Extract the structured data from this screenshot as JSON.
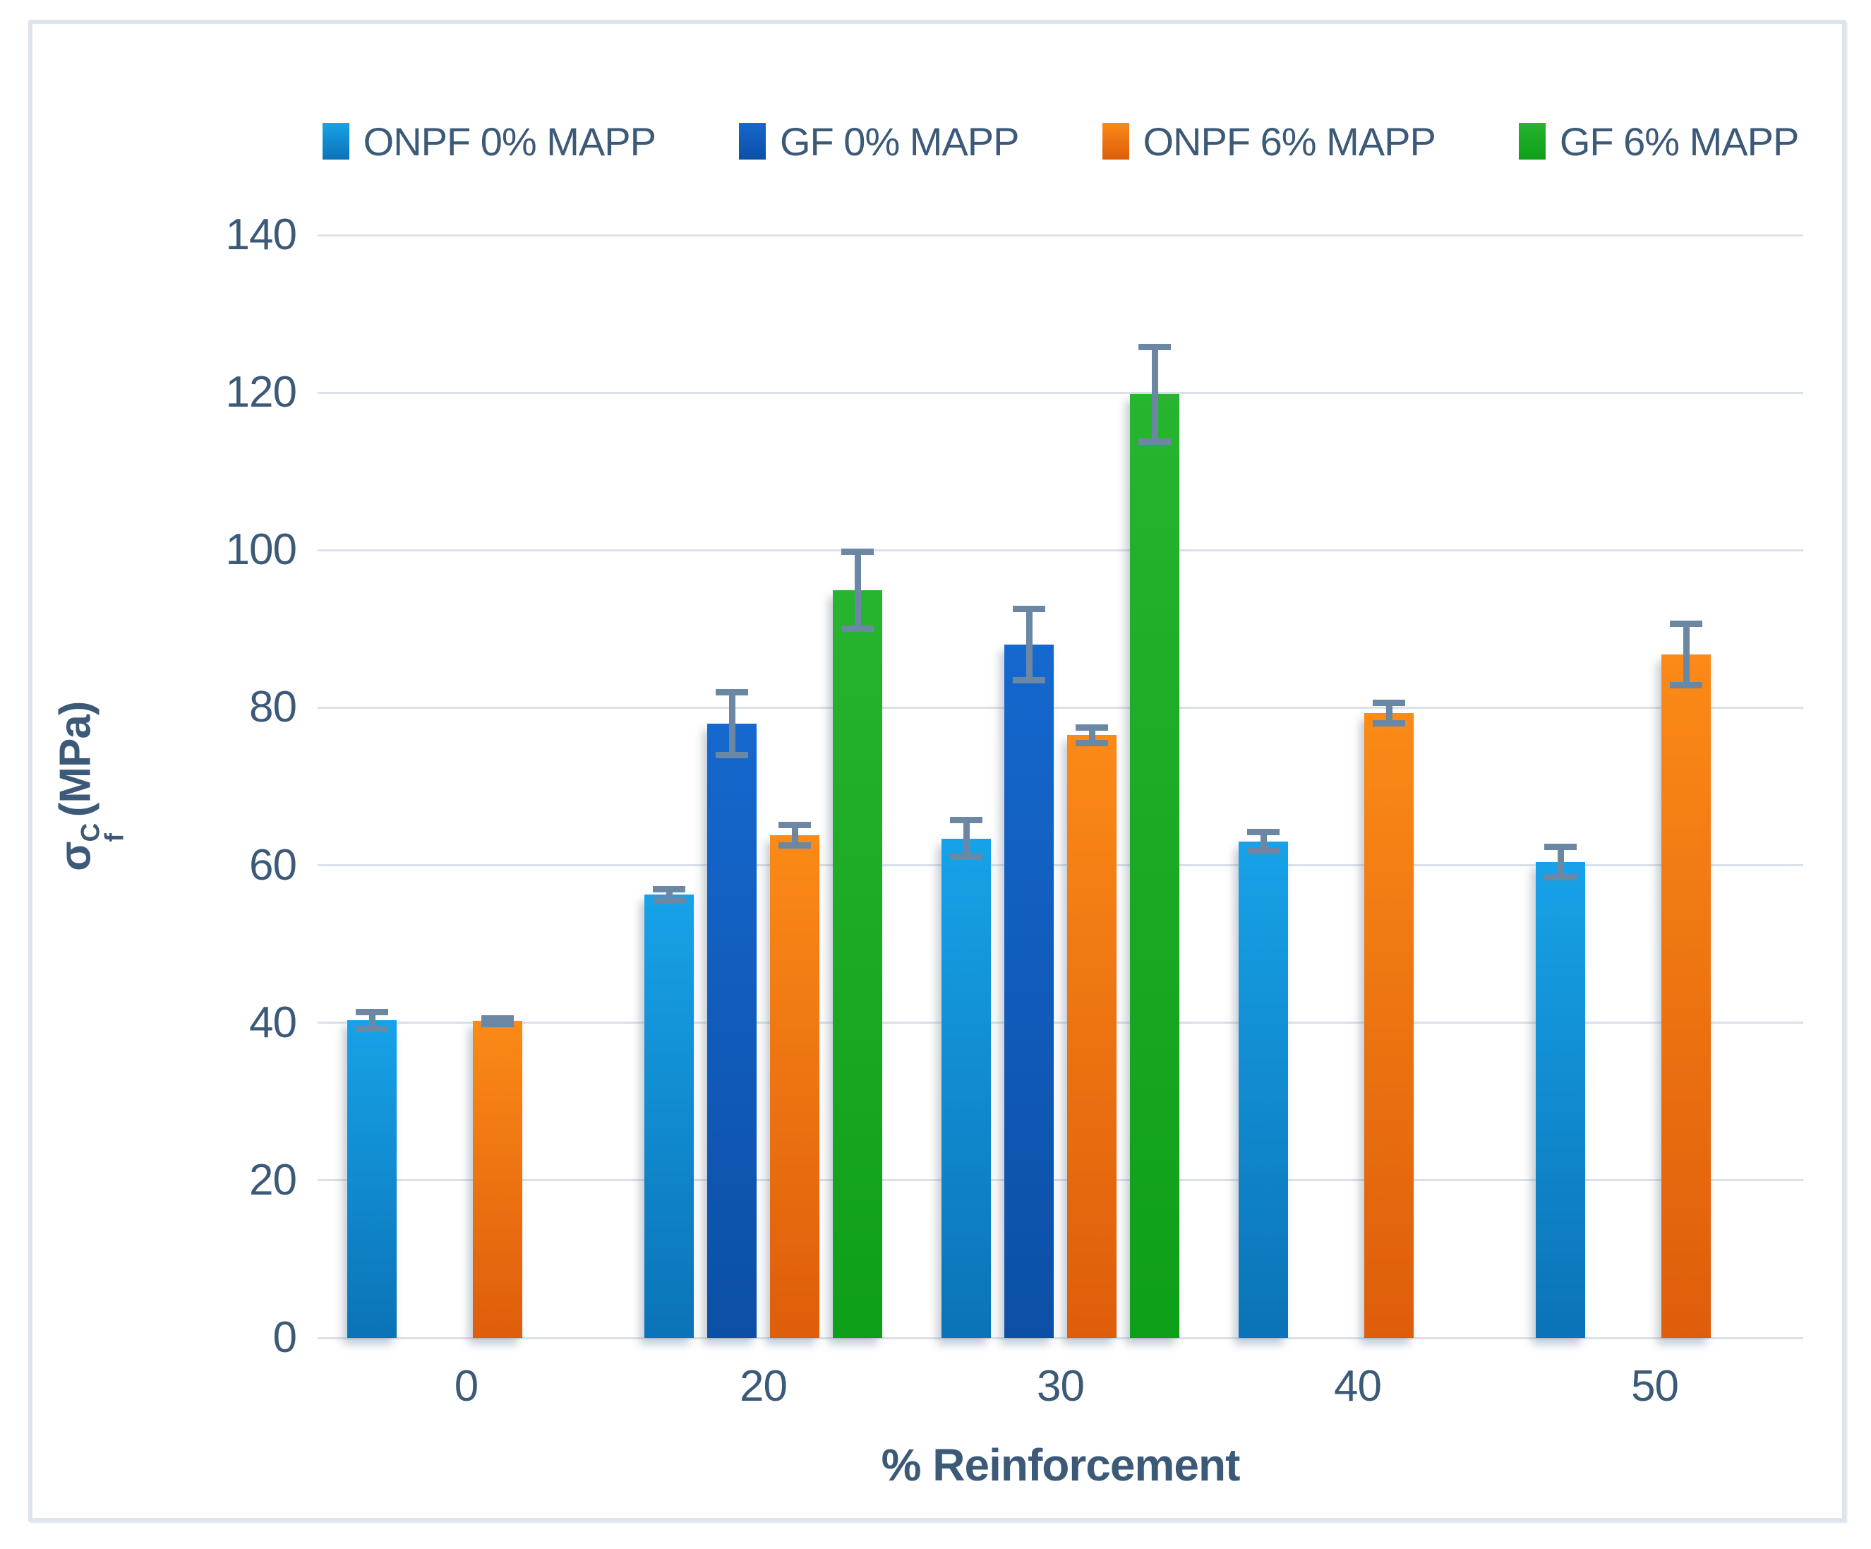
{
  "figure": {
    "background": "#FFFFFF",
    "frame_color": "#DEE4EB"
  },
  "colors": {
    "text": "#3C5A78",
    "grid": "#DAE1EA",
    "error_bar": "#6C87A3"
  },
  "y_axis": {
    "title_sigma": "σ",
    "title_sup": "C",
    "title_sub": "f",
    "title_unit": "(MPa)",
    "ticks": [
      "0",
      "20",
      "40",
      "60",
      "80",
      "100",
      "120",
      "140"
    ],
    "max": 140
  },
  "x_axis": {
    "title": "% Reinforcement",
    "categories": [
      "0",
      "20",
      "30",
      "40",
      "50"
    ]
  },
  "chart_data": {
    "type": "bar",
    "title": "",
    "xlabel": "% Reinforcement",
    "ylabel": "σ_f^C (MPa)",
    "ylim": [
      0,
      140
    ],
    "grid": true,
    "legend_position": "top",
    "categories": [
      "0",
      "20",
      "30",
      "40",
      "50"
    ],
    "series": [
      {
        "name": "ONPF 0% MAPP",
        "color_top": "#17A2E8",
        "color_bottom": "#0B73B7",
        "values": [
          40.3,
          56.3,
          63.4,
          63.0,
          60.4
        ],
        "errors": [
          1.1,
          0.7,
          2.3,
          1.2,
          1.9
        ]
      },
      {
        "name": "GF 0% MAPP",
        "color_top": "#1568CE",
        "color_bottom": "#0C4FA6",
        "values": [
          null,
          78.0,
          88.0,
          null,
          null
        ],
        "errors": [
          null,
          4.0,
          4.5,
          null,
          null
        ]
      },
      {
        "name": "ONPF 6% MAPP",
        "color_top": "#FB8A17",
        "color_bottom": "#DE5D0B",
        "values": [
          40.2,
          63.8,
          76.5,
          79.3,
          86.8
        ],
        "errors": [
          0.4,
          1.3,
          1.0,
          1.3,
          3.9
        ]
      },
      {
        "name": "GF 6% MAPP",
        "color_top": "#27B42F",
        "color_bottom": "#0E9F19",
        "values": [
          null,
          94.9,
          119.8,
          null,
          null
        ],
        "errors": [
          null,
          4.9,
          6.0,
          null,
          null
        ]
      }
    ]
  }
}
